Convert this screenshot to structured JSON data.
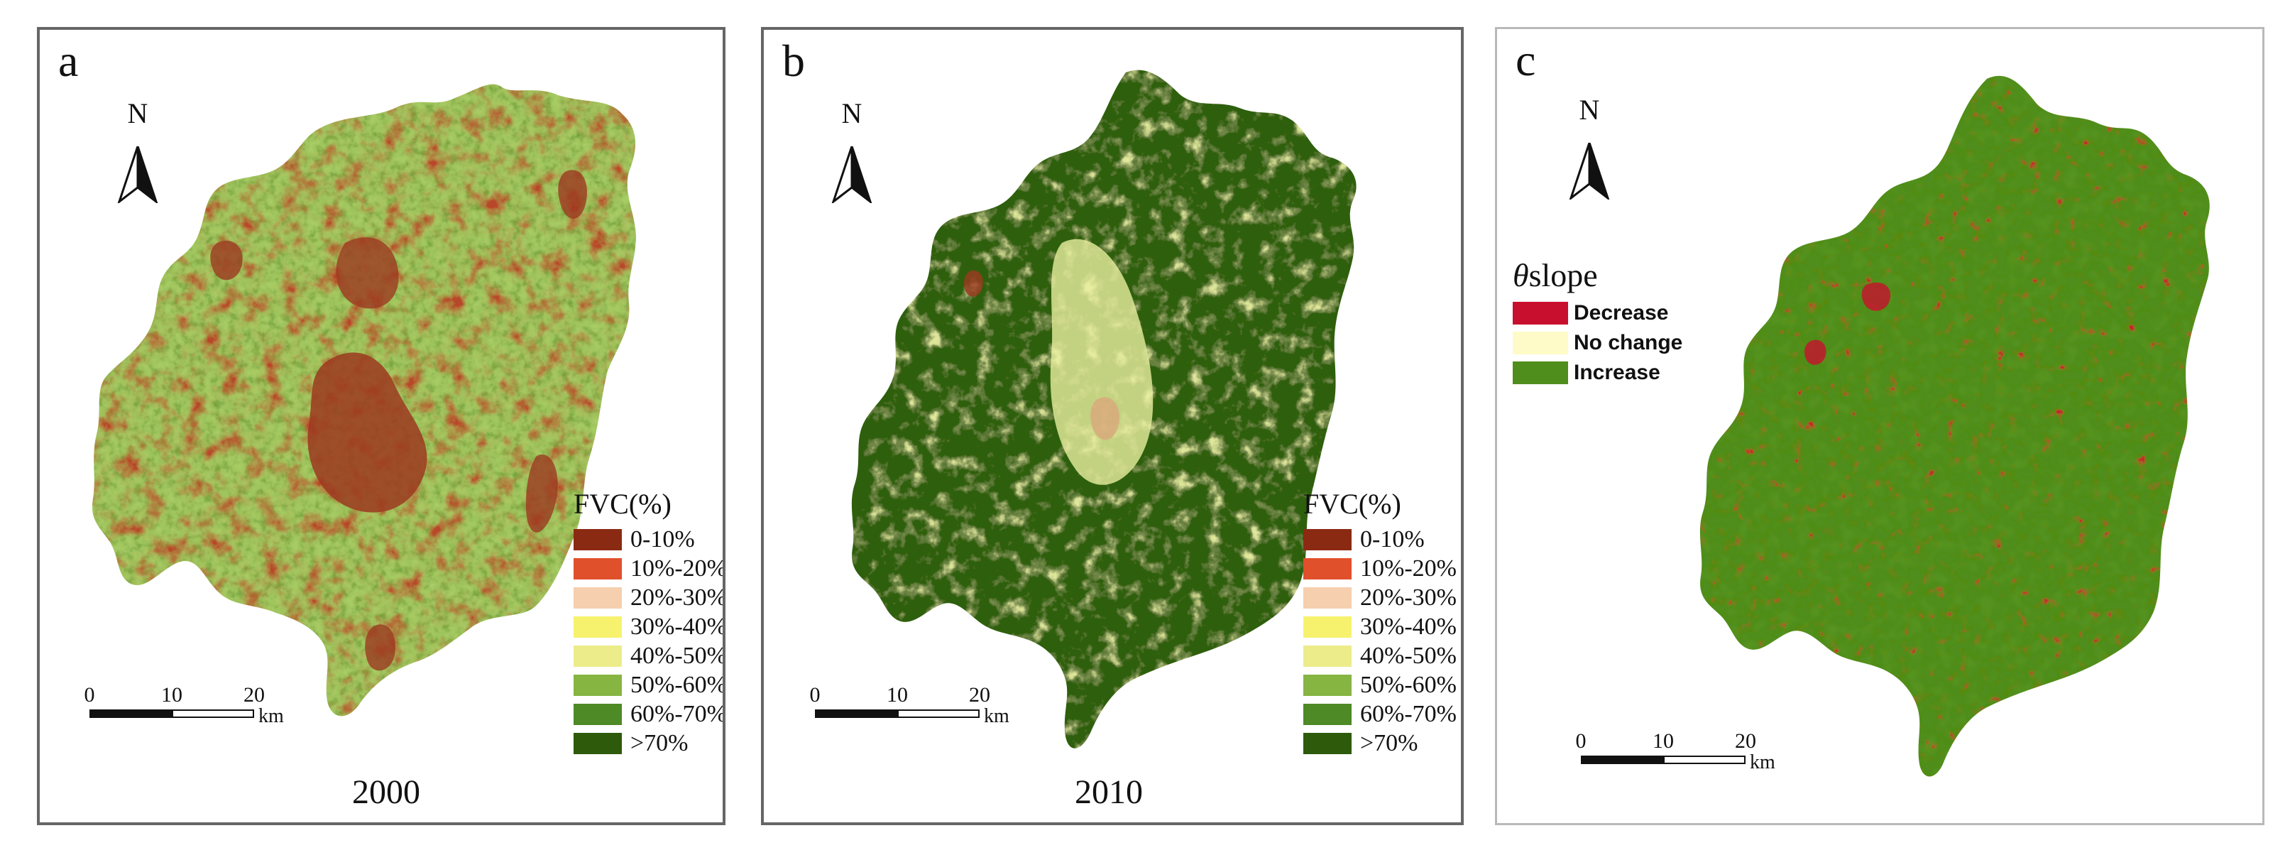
{
  "panels": [
    {
      "label": "a",
      "north": "N",
      "year": "2000",
      "legend_title": "FVC(%)",
      "legend_items": [
        "0-10%",
        "10%-20%",
        "20%-30%",
        "30%-40%",
        "40%-50%",
        "50%-60%",
        "60%-70%",
        ">70%"
      ],
      "scale_ticks": [
        "0",
        "10",
        "20"
      ],
      "scale_unit": "km",
      "dominant_colors": [
        "#9c3a20",
        "#e8c99b",
        "#9fc75c",
        "#6b9a38"
      ]
    },
    {
      "label": "b",
      "north": "N",
      "year": "2010",
      "legend_title": "FVC(%)",
      "legend_items": [
        "0-10%",
        "10%-20%",
        "20%-30%",
        "30%-40%",
        "40%-50%",
        "50%-60%",
        "60%-70%",
        ">70%"
      ],
      "scale_ticks": [
        "0",
        "10",
        "20"
      ],
      "scale_unit": "km",
      "dominant_colors": [
        "#2f5e0a",
        "#e9f0a0",
        "#a9c465",
        "#9c3a20"
      ]
    },
    {
      "label": "c",
      "north": "N",
      "legend_title_symbol": "θ",
      "legend_title_text": "slope",
      "legend_items": [
        "Decrease",
        "No change",
        "Increase"
      ],
      "scale_ticks": [
        "0",
        "10",
        "20"
      ],
      "scale_unit": "km",
      "dominant_colors": [
        "#4f8d1c",
        "#c8102e"
      ]
    }
  ],
  "fvc_colors": [
    "#8b2a12",
    "#e0502a",
    "#f6cfae",
    "#f7f26e",
    "#ecec8a",
    "#86b541",
    "#4e8a25",
    "#2d5a0b"
  ],
  "slope_colors": [
    "#c8102e",
    "#fffbc8",
    "#4f8d1c"
  ]
}
